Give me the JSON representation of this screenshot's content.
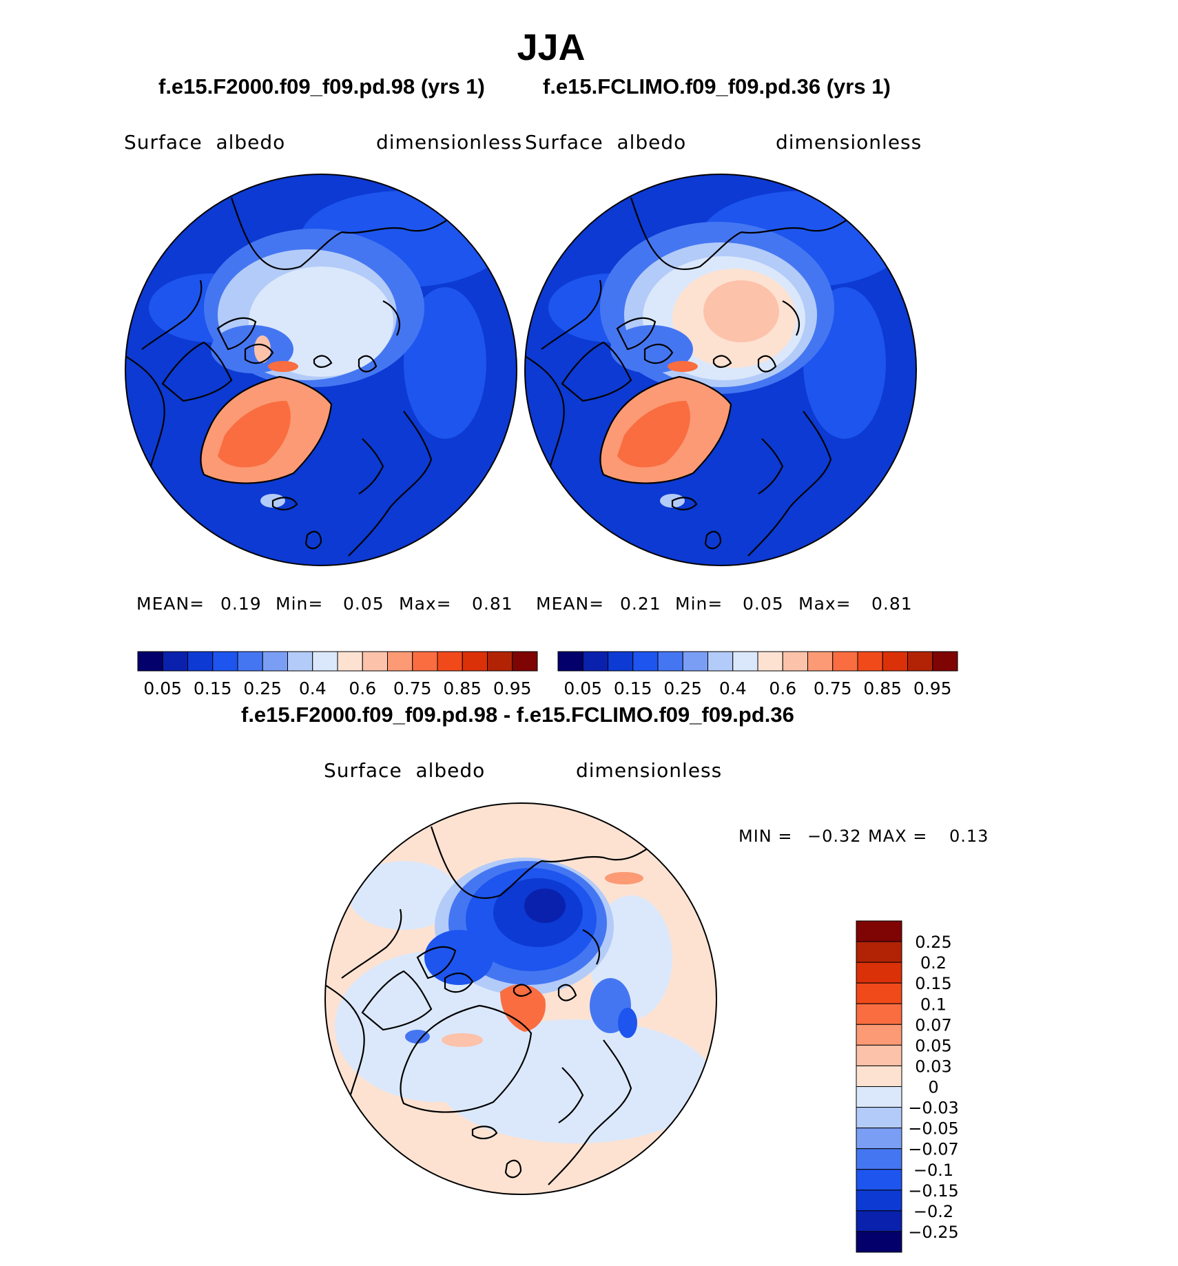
{
  "figure": {
    "season": "JJA",
    "variable": "Surface  albedo",
    "units": "dimensionless"
  },
  "panels": [
    {
      "case_title": "f.e15.F2000.f09_f09.pd.98 (yrs 1)",
      "variable": "Surface  albedo",
      "units": "dimensionless",
      "stats": {
        "mean_label": "MEAN=",
        "mean": "0.19",
        "min_label": "Min=",
        "min": "0.05",
        "max_label": "Max=",
        "max": "0.81"
      }
    },
    {
      "case_title": "f.e15.FCLIMO.f09_f09.pd.36 (yrs 1)",
      "variable": "Surface  albedo",
      "units": "dimensionless",
      "stats": {
        "mean_label": "MEAN=",
        "mean": "0.21",
        "min_label": "Min=",
        "min": "0.05",
        "max_label": "Max=",
        "max": "0.81"
      }
    }
  ],
  "diff_panel": {
    "title": "f.e15.F2000.f09_f09.pd.98 - f.e15.FCLIMO.f09_f09.pd.36",
    "variable": "Surface  albedo",
    "units": "dimensionless",
    "min_label": "MIN =",
    "min": "−0.32",
    "max_label": "MAX =",
    "max": "0.13"
  },
  "colorbar_abs": {
    "colors": [
      "#03006b",
      "#0a21ad",
      "#0c3ad2",
      "#1d55ee",
      "#4576f2",
      "#7b9ef5",
      "#b3cbf8",
      "#dbe8fb",
      "#fde2d2",
      "#fcc2aa",
      "#fb9a74",
      "#f96d40",
      "#f14a1a",
      "#db3108",
      "#b22306",
      "#7f0404"
    ],
    "tick_labels": [
      "0.05",
      "0.15",
      "0.25",
      "0.4",
      "0.6",
      "0.75",
      "0.85",
      "0.95"
    ]
  },
  "colorbar_diff": {
    "colors": [
      "#7f0404",
      "#b22306",
      "#db3108",
      "#f14a1a",
      "#f96d40",
      "#fb9a74",
      "#fcc2aa",
      "#fde2d2",
      "#dbe8fb",
      "#b3cbf8",
      "#7b9ef5",
      "#4576f2",
      "#1d55ee",
      "#0c3ad2",
      "#0a21ad",
      "#03006b"
    ],
    "tick_labels": [
      "0.25",
      "0.2",
      "0.15",
      "0.1",
      "0.07",
      "0.05",
      "0.03",
      "0",
      "−0.03",
      "−0.05",
      "−0.07",
      "−0.1",
      "−0.15",
      "−0.2",
      "−0.25"
    ]
  },
  "chart_data": [
    {
      "type": "heatmap",
      "title": "f.e15.F2000.f09_f09.pd.98 (yrs 1)",
      "projection": "north polar stereographic",
      "levels": [
        0.05,
        0.1,
        0.15,
        0.2,
        0.25,
        0.3,
        0.4,
        0.5,
        0.6,
        0.7,
        0.75,
        0.8,
        0.85,
        0.9,
        0.95
      ],
      "mean": 0.19,
      "min": 0.05,
      "max": 0.81
    },
    {
      "type": "heatmap",
      "title": "f.e15.FCLIMO.f09_f09.pd.36 (yrs 1)",
      "projection": "north polar stereographic",
      "levels": [
        0.05,
        0.1,
        0.15,
        0.2,
        0.25,
        0.3,
        0.4,
        0.5,
        0.6,
        0.7,
        0.75,
        0.8,
        0.85,
        0.9,
        0.95
      ],
      "mean": 0.21,
      "min": 0.05,
      "max": 0.81
    },
    {
      "type": "heatmap",
      "title": "f.e15.F2000.f09_f09.pd.98 - f.e15.FCLIMO.f09_f09.pd.36",
      "projection": "north polar stereographic",
      "levels": [
        -0.25,
        -0.2,
        -0.15,
        -0.1,
        -0.07,
        -0.05,
        -0.03,
        0,
        0.03,
        0.05,
        0.07,
        0.1,
        0.15,
        0.2,
        0.25
      ],
      "min": -0.32,
      "max": 0.13
    }
  ]
}
